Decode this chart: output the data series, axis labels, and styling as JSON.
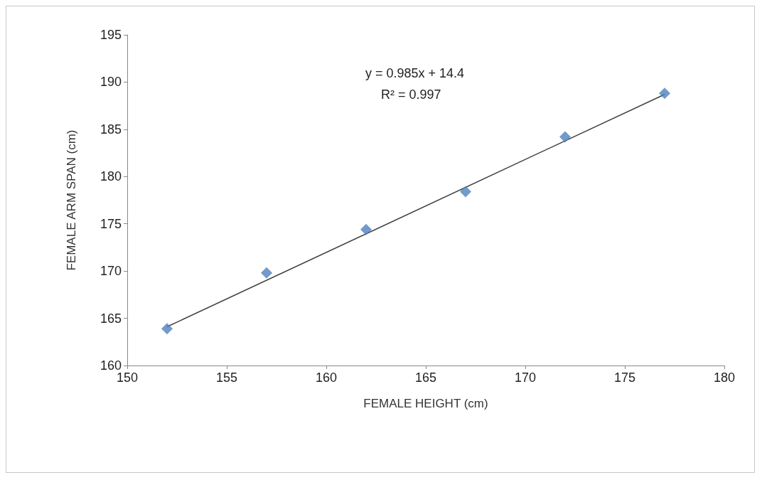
{
  "chart_data": {
    "type": "scatter",
    "xlabel": "FEMALE HEIGHT (cm)",
    "ylabel": "FEMALE ARM SPAN (cm)",
    "x": [
      152,
      157,
      162,
      167,
      172,
      177
    ],
    "series": [
      {
        "type": "scatter",
        "color": "#4f81bd",
        "marker": "diamond",
        "values": [
          163.9,
          169.8,
          174.4,
          178.4,
          184.2,
          188.8
        ]
      },
      {
        "type": "line",
        "color": "#404040",
        "marker": "none",
        "x": [
          152,
          177
        ],
        "values": [
          164.1,
          188.7
        ]
      }
    ],
    "annotations": [
      "y = 0.985x + 14.4",
      "R² = 0.997"
    ],
    "xlim": [
      150,
      180
    ],
    "xticks": [
      150,
      155,
      160,
      165,
      170,
      175,
      180
    ],
    "ylim": [
      160,
      195
    ],
    "yticks": [
      160,
      165,
      170,
      175,
      180,
      185,
      190,
      195
    ],
    "grid": false
  }
}
